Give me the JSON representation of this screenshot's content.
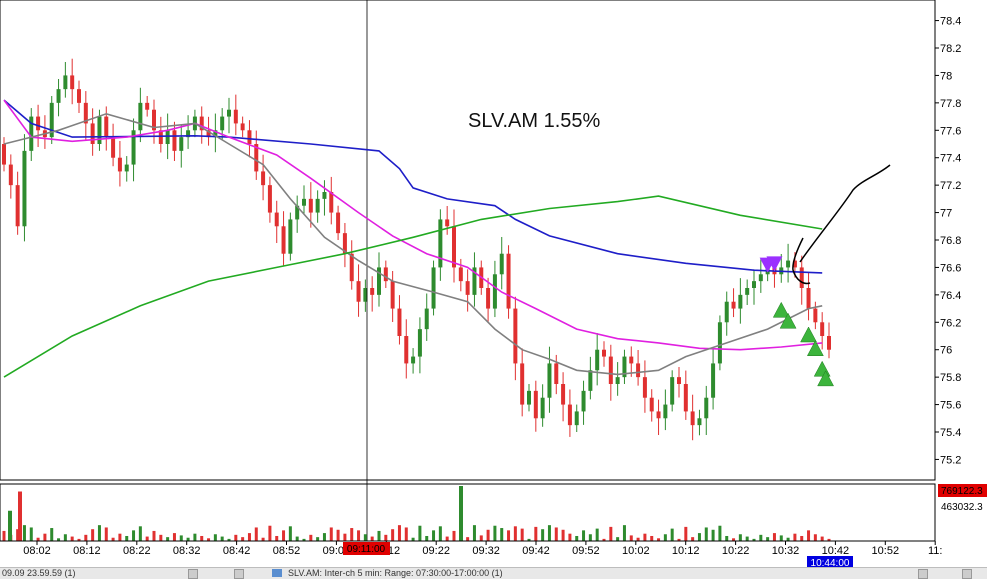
{
  "annotation": "SLV.AM  1.55%",
  "status_bar": {
    "left_text": "09.09  23.59.59  (1)",
    "chart_tab": "SLV.AM: Inter-ch 5 min: Range: 07:30:00-17:00:00 (1)"
  },
  "cursor_time_label": "09:11:00",
  "last_time_label": "10:44:00",
  "colors": {
    "up_candle": "#2e8b2e",
    "down_candle": "#e03030",
    "blue_line": "#1e1ec8",
    "magenta_line": "#e020e0",
    "gray_line": "#808080",
    "green_line": "#22aa22",
    "buy_marker": "#3cb43c",
    "sell_marker": "#9b30ff",
    "red_tag": "#e00000",
    "blue_tag": "#0000e0"
  },
  "chart_data": {
    "type": "candlestick",
    "title": "SLV.AM  1.55%",
    "ylim": [
      75.05,
      78.55
    ],
    "y_ticks": [
      "78.4",
      "78.2",
      "78",
      "77.8",
      "77.6",
      "77.4",
      "77.2",
      "77",
      "76.8",
      "76.6",
      "76.4",
      "76.2",
      "76",
      "75.8",
      "75.6",
      "75.4",
      "75.2"
    ],
    "x_ticks": [
      "08:02",
      "08:12",
      "08:22",
      "08:32",
      "08:42",
      "08:52",
      "09:02",
      "09:12",
      "09:22",
      "09:32",
      "09:42",
      "09:52",
      "10:02",
      "10:12",
      "10:22",
      "10:32",
      "10:42",
      "10:52",
      "11:"
    ],
    "time_axis": {
      "start": "07:56",
      "end": "11:06",
      "bar_minutes": 1
    },
    "candles_close": [
      77.35,
      77.2,
      76.9,
      77.45,
      77.7,
      77.6,
      77.55,
      77.8,
      77.9,
      78.0,
      77.9,
      77.8,
      77.65,
      77.5,
      77.7,
      77.55,
      77.4,
      77.3,
      77.35,
      77.6,
      77.8,
      77.75,
      77.6,
      77.5,
      77.6,
      77.45,
      77.55,
      77.6,
      77.7,
      77.6,
      77.55,
      77.6,
      77.7,
      77.75,
      77.65,
      77.6,
      77.5,
      77.3,
      77.2,
      77.0,
      76.9,
      76.7,
      76.95,
      77.05,
      77.1,
      77.0,
      77.1,
      77.15,
      77.0,
      76.85,
      76.7,
      76.5,
      76.35,
      76.45,
      76.4,
      76.6,
      76.5,
      76.3,
      76.1,
      75.9,
      75.95,
      76.15,
      76.3,
      76.6,
      76.95,
      76.9,
      76.6,
      76.5,
      76.4,
      76.6,
      76.45,
      76.3,
      76.55,
      76.7,
      76.3,
      75.9,
      75.6,
      75.7,
      75.5,
      75.65,
      75.9,
      75.75,
      75.6,
      75.45,
      75.55,
      75.7,
      75.85,
      76.0,
      75.95,
      75.75,
      75.8,
      75.95,
      75.9,
      75.8,
      75.65,
      75.55,
      75.5,
      75.6,
      75.8,
      75.75,
      75.55,
      75.45,
      75.5,
      75.65,
      75.9,
      76.2,
      76.35,
      76.3,
      76.4,
      76.45,
      76.5,
      76.55,
      76.6,
      76.55,
      76.6,
      76.65,
      76.6,
      76.45,
      76.3,
      76.2,
      76.1,
      76.0
    ],
    "volume_ylim": [
      0,
      769122
    ],
    "volume_labels": [
      "769122.3",
      "463032.3"
    ],
    "series": [
      {
        "name": "",
        "color": "#1e1ec8",
        "points": [
          [
            0,
            77.82
          ],
          [
            4,
            77.65
          ],
          [
            10,
            77.55
          ],
          [
            28,
            77.56
          ],
          [
            33,
            77.55
          ],
          [
            45,
            77.5
          ],
          [
            55,
            77.45
          ],
          [
            58,
            77.32
          ],
          [
            60,
            77.18
          ],
          [
            65,
            77.1
          ],
          [
            72,
            77.05
          ],
          [
            75,
            76.95
          ],
          [
            80,
            76.83
          ],
          [
            90,
            76.7
          ],
          [
            100,
            76.63
          ],
          [
            110,
            76.58
          ],
          [
            120,
            76.56
          ]
        ]
      },
      {
        "name": "",
        "color": "#e020e0",
        "points": [
          [
            0,
            77.82
          ],
          [
            4,
            77.55
          ],
          [
            10,
            77.52
          ],
          [
            18,
            77.55
          ],
          [
            24,
            77.6
          ],
          [
            28,
            77.65
          ],
          [
            33,
            77.55
          ],
          [
            40,
            77.42
          ],
          [
            45,
            77.25
          ],
          [
            52,
            77.0
          ],
          [
            57,
            76.83
          ],
          [
            62,
            76.7
          ],
          [
            68,
            76.6
          ],
          [
            73,
            76.42
          ],
          [
            78,
            76.3
          ],
          [
            84,
            76.15
          ],
          [
            90,
            76.08
          ],
          [
            96,
            76.05
          ],
          [
            102,
            76.01
          ],
          [
            108,
            76.0
          ],
          [
            114,
            76.02
          ],
          [
            120,
            76.05
          ]
        ]
      },
      {
        "name": "",
        "color": "#808080",
        "points": [
          [
            0,
            77.5
          ],
          [
            4,
            77.55
          ],
          [
            8,
            77.6
          ],
          [
            15,
            77.72
          ],
          [
            22,
            77.62
          ],
          [
            28,
            77.65
          ],
          [
            33,
            77.5
          ],
          [
            38,
            77.35
          ],
          [
            42,
            77.1
          ],
          [
            47,
            76.82
          ],
          [
            52,
            76.65
          ],
          [
            57,
            76.5
          ],
          [
            63,
            76.42
          ],
          [
            68,
            76.35
          ],
          [
            72,
            76.15
          ],
          [
            76,
            76.0
          ],
          [
            80,
            75.93
          ],
          [
            84,
            75.85
          ],
          [
            90,
            75.82
          ],
          [
            96,
            75.85
          ],
          [
            100,
            75.95
          ],
          [
            106,
            76.05
          ],
          [
            112,
            76.15
          ],
          [
            118,
            76.3
          ],
          [
            120,
            76.32
          ]
        ]
      },
      {
        "name": "",
        "color": "#22aa22",
        "points": [
          [
            0,
            75.8
          ],
          [
            10,
            76.1
          ],
          [
            20,
            76.32
          ],
          [
            30,
            76.5
          ],
          [
            40,
            76.6
          ],
          [
            50,
            76.7
          ],
          [
            60,
            76.82
          ],
          [
            70,
            76.95
          ],
          [
            80,
            77.03
          ],
          [
            90,
            77.08
          ],
          [
            96,
            77.12
          ],
          [
            108,
            76.98
          ],
          [
            120,
            76.88
          ]
        ]
      }
    ],
    "markers": {
      "sell": [
        [
          112,
          76.62
        ],
        [
          113,
          76.63
        ]
      ],
      "buy": [
        [
          114,
          76.28
        ],
        [
          115,
          76.2
        ],
        [
          118,
          76.1
        ],
        [
          119,
          76.0
        ],
        [
          120,
          75.85
        ],
        [
          120.5,
          75.78
        ]
      ]
    }
  }
}
